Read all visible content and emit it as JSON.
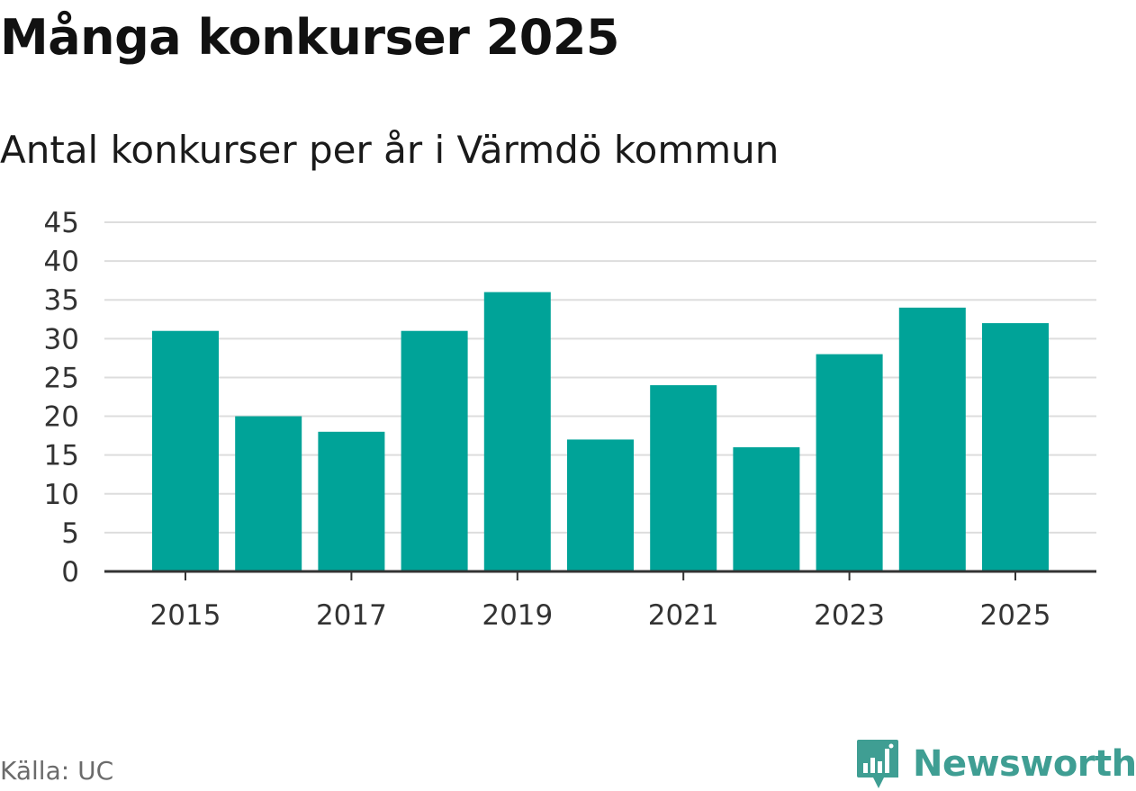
{
  "title": "Många konkurser 2025",
  "subtitle": "Antal konkurser per år i Värmdö kommun",
  "source": "Källa: UC",
  "logo": {
    "text": "Newsworthy",
    "icon": "newsworthy-logo-icon",
    "color": "#3f9e93"
  },
  "colors": {
    "bar": "#00a398",
    "grid": "#dddddd",
    "axis": "#333333"
  },
  "chart_data": {
    "type": "bar",
    "categories": [
      "2015",
      "2016",
      "2017",
      "2018",
      "2019",
      "2020",
      "2021",
      "2022",
      "2023",
      "2024",
      "2025"
    ],
    "values": [
      31,
      20,
      18,
      31,
      36,
      17,
      24,
      16,
      28,
      34,
      32
    ],
    "x_tick_labels": [
      "2015",
      "2017",
      "2019",
      "2021",
      "2023",
      "2025"
    ],
    "y_ticks": [
      "0",
      "5",
      "10",
      "15",
      "20",
      "25",
      "30",
      "35",
      "40",
      "45"
    ],
    "ylim": [
      0,
      45
    ],
    "grid": true,
    "title": "Många konkurser 2025",
    "xlabel": "",
    "ylabel": ""
  }
}
